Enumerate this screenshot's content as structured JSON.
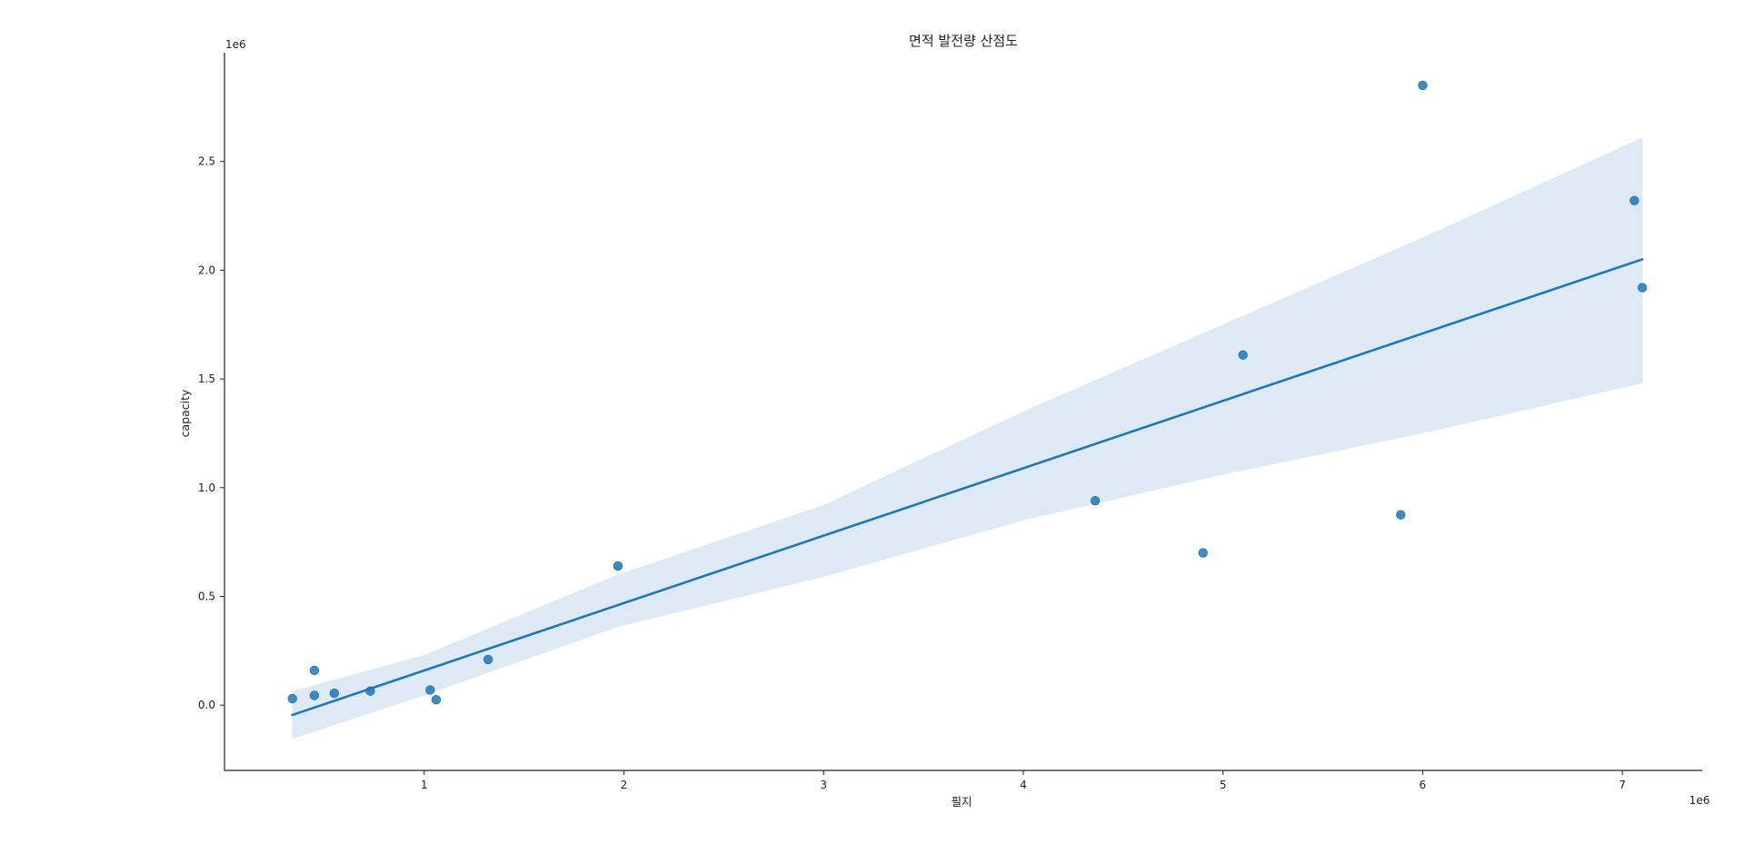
{
  "chart_data": {
    "type": "scatter",
    "title": "면적 발전량 산점도",
    "xlabel": "필지",
    "ylabel": "capacity",
    "x_offset_label": "1e6",
    "y_offset_label": "1e6",
    "xlim": [
      0.0,
      7.4
    ],
    "ylim": [
      -0.3,
      3.0
    ],
    "x_ticks": [
      1,
      2,
      3,
      4,
      5,
      6,
      7
    ],
    "x_tick_labels": [
      "1",
      "2",
      "3",
      "4",
      "5",
      "6",
      "7"
    ],
    "y_ticks": [
      0.0,
      0.5,
      1.0,
      1.5,
      2.0,
      2.5
    ],
    "y_tick_labels": [
      "0.0",
      "0.5",
      "1.0",
      "1.5",
      "2.0",
      "2.5"
    ],
    "grid": false,
    "colors": {
      "points": "#1f77b4",
      "line": "#1f77b4",
      "band": "#dde9f4"
    },
    "points": [
      {
        "x": 0.34,
        "y": 0.03
      },
      {
        "x": 0.45,
        "y": 0.16
      },
      {
        "x": 0.45,
        "y": 0.045
      },
      {
        "x": 0.55,
        "y": 0.055
      },
      {
        "x": 0.73,
        "y": 0.065
      },
      {
        "x": 1.03,
        "y": 0.07
      },
      {
        "x": 1.06,
        "y": 0.025
      },
      {
        "x": 1.32,
        "y": 0.21
      },
      {
        "x": 1.97,
        "y": 0.64
      },
      {
        "x": 4.36,
        "y": 0.94
      },
      {
        "x": 4.9,
        "y": 0.7
      },
      {
        "x": 5.1,
        "y": 1.61
      },
      {
        "x": 5.89,
        "y": 0.875
      },
      {
        "x": 6.0,
        "y": 2.85
      },
      {
        "x": 7.06,
        "y": 2.32
      },
      {
        "x": 7.1,
        "y": 1.92
      }
    ],
    "regression": {
      "x": [
        0.34,
        7.1
      ],
      "y": [
        -0.045,
        2.05
      ]
    },
    "confidence_band": {
      "x": [
        0.34,
        1.0,
        1.97,
        3.0,
        4.0,
        5.0,
        6.0,
        7.1
      ],
      "upper": [
        0.065,
        0.23,
        0.6,
        0.92,
        1.35,
        1.75,
        2.15,
        2.61
      ],
      "lower": [
        -0.155,
        0.045,
        0.36,
        0.59,
        0.85,
        1.06,
        1.25,
        1.48
      ]
    }
  }
}
